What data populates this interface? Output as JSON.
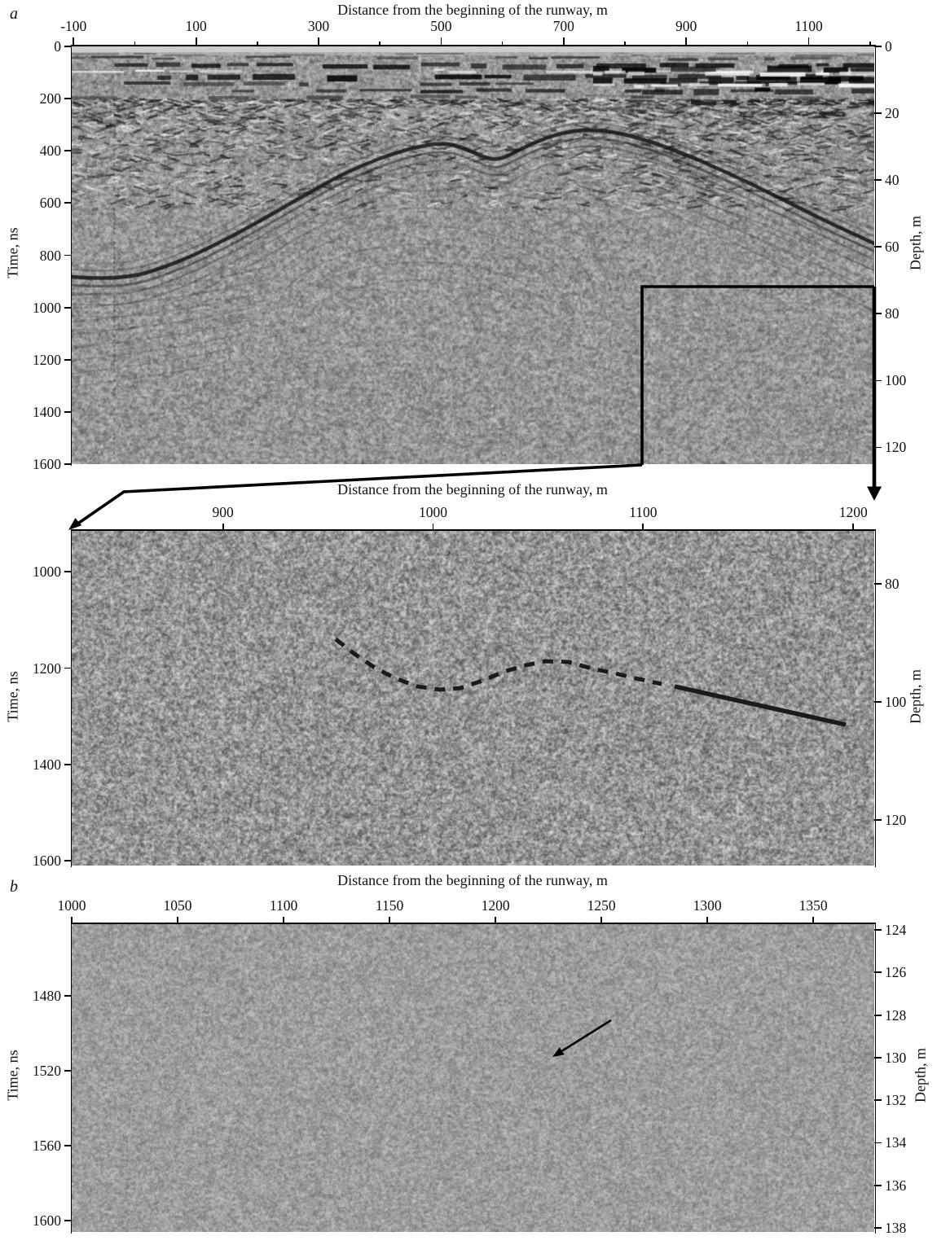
{
  "page": {
    "background": "#ffffff",
    "text_color": "#111111",
    "ink": "#000000"
  },
  "chart_data": [
    {
      "panel": "a",
      "panel_label": "a",
      "type": "heatmap",
      "content": "GPR radargram, grayscale reflection amplitude section along the runway",
      "xlabel": "Distance from the beginning of the runway, m",
      "ylabel_left": "Time, ns",
      "ylabel_right": "Depth, m",
      "x_major_ticks": [
        -100,
        100,
        300,
        500,
        700,
        900,
        1100
      ],
      "x_minor_ticks": [
        0,
        200,
        400,
        600,
        800,
        1000,
        1200
      ],
      "xlim": [
        -103,
        1207
      ],
      "time_ticks": [
        0,
        200,
        400,
        600,
        800,
        1000,
        1200,
        1400,
        1600
      ],
      "time_lim": [
        0,
        1600
      ],
      "depth_ticks": [
        0,
        20,
        40,
        60,
        80,
        100,
        120
      ],
      "depth_lim": [
        0,
        125
      ],
      "grid": false,
      "annotations": [
        {
          "kind": "inset-rectangle",
          "distance_m": [
            830,
            1207
          ],
          "time_ns": [
            920,
            1600
          ]
        },
        {
          "kind": "arrow-down",
          "note": "thick right edge of rectangle continues into downward arrow pointing at the 1200 m tick of the enlarged panel"
        },
        {
          "kind": "arrow-to-inset",
          "note": "line from rectangle lower-left corner with arrowhead pointing at upper-left corner of the enlarged panel"
        }
      ]
    },
    {
      "panel": "a-inset",
      "panel_label": "",
      "type": "heatmap",
      "content": "Enlarged fragment of radargram a (region marked by the rectangle)",
      "xlabel": "Distance from the beginning of the runway, m",
      "ylabel_left": "Time, ns",
      "ylabel_right": "Depth, m",
      "x_major_ticks": [
        900,
        1000,
        1100,
        1200
      ],
      "xlim": [
        828,
        1210
      ],
      "time_ticks": [
        1000,
        1200,
        1400,
        1600
      ],
      "time_lim": [
        915,
        1610
      ],
      "depth_ticks": [
        80,
        100,
        120
      ],
      "depth_lim": [
        71,
        127.7
      ],
      "grid": false,
      "annotations": [
        {
          "kind": "dashed-line",
          "label": "interpreted horizon (dashed)",
          "points_distance_time": [
            [
              954,
              1140
            ],
            [
              963,
              1170
            ],
            [
              972,
              1199
            ],
            [
              982,
              1221
            ],
            [
              992,
              1238
            ],
            [
              1003,
              1245
            ],
            [
              1013,
              1242
            ],
            [
              1023,
              1226
            ],
            [
              1034,
              1207
            ],
            [
              1044,
              1194
            ],
            [
              1054,
              1186
            ],
            [
              1065,
              1187
            ],
            [
              1075,
              1201
            ],
            [
              1087,
              1211
            ],
            [
              1096,
              1221
            ],
            [
              1107,
              1231
            ]
          ]
        },
        {
          "kind": "solid-line",
          "label": "interpreted horizon (solid)",
          "from_distance_time": [
            1115,
            1238
          ],
          "to_distance_time": [
            1197,
            1317
          ],
          "from_depth_m": 97.4,
          "to_depth_m": 103.9
        }
      ]
    },
    {
      "panel": "b",
      "panel_label": "b",
      "type": "heatmap",
      "content": "GPR radargram fragment at late times (deep part)",
      "xlabel": "Distance from the beginning of the runway, m",
      "ylabel_left": "Time, ns",
      "ylabel_right": "Depth, m",
      "x_major_ticks": [
        1000,
        1050,
        1100,
        1150,
        1200,
        1250,
        1300,
        1350
      ],
      "xlim": [
        1000,
        1378.8
      ],
      "time_ticks": [
        1480,
        1520,
        1560,
        1600
      ],
      "time_lim": [
        1441.7,
        1606.1
      ],
      "depth_ticks": [
        124,
        126,
        128,
        130,
        132,
        134,
        136,
        138
      ],
      "depth_lim": [
        123.73,
        138.19
      ],
      "grid": false,
      "annotations": [
        {
          "kind": "arrow",
          "label": "pointer to weak diffraction feature",
          "tip_distance_time": [
            1227,
            1513
          ],
          "tip_depth_m": 130
        }
      ]
    }
  ]
}
